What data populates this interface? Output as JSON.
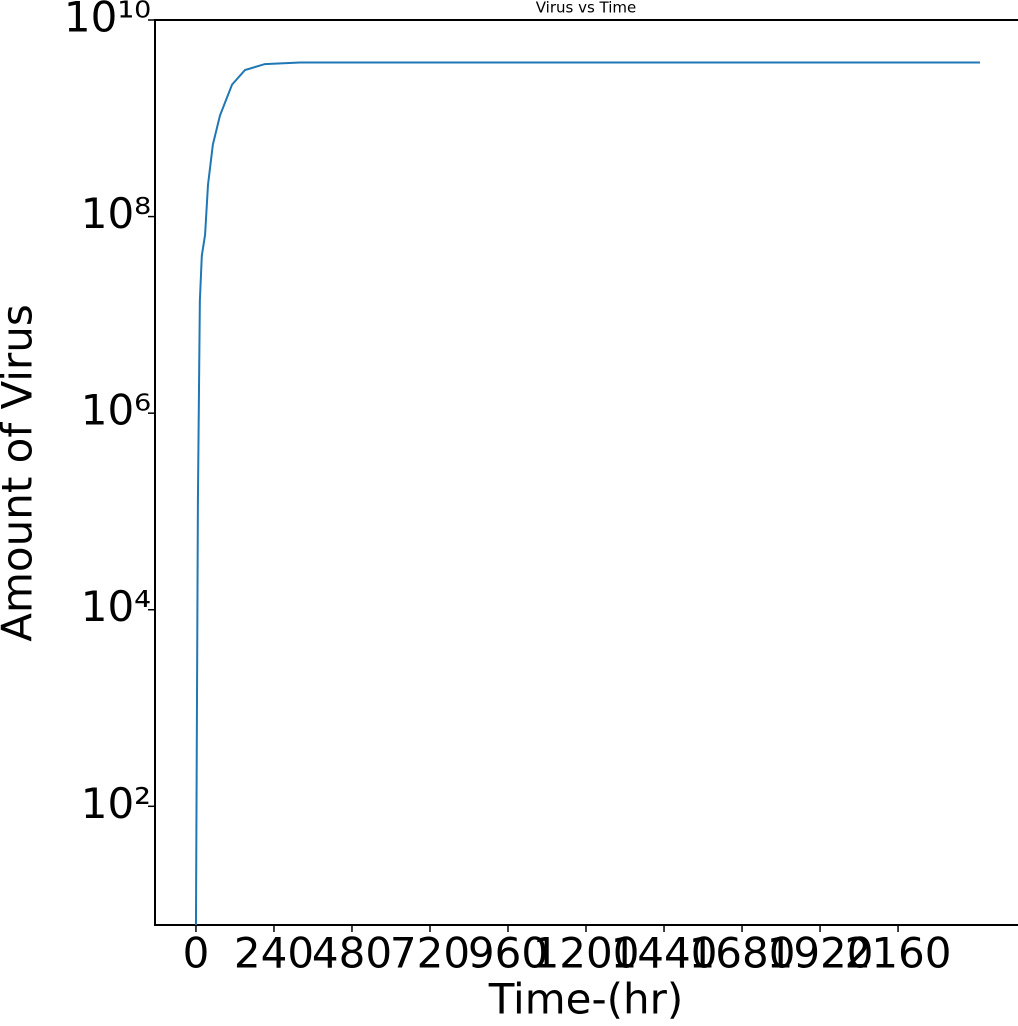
{
  "chart_data": {
    "type": "line",
    "title": "Virus vs Time",
    "x_label": "Time-(hr)",
    "y_label": "Amount of Virus",
    "x": [
      0,
      6,
      12,
      18,
      28,
      37,
      52,
      74,
      111,
      151,
      212,
      320,
      600,
      1200,
      1800,
      2412
    ],
    "values": [
      6.2,
      130000,
      14000000,
      40000000,
      65000000,
      210000000,
      540000000,
      1070000000,
      2200000000,
      3100000000,
      3560000000,
      3700000000,
      3700000000,
      3700000000,
      3700000000,
      3700000000
    ],
    "color": "#1f77b4",
    "xlim": [
      -126,
      2529
    ],
    "xticks": [
      0,
      240,
      480,
      720,
      960,
      1200,
      1440,
      1680,
      1920,
      2160
    ],
    "ylim": [
      6.2,
      10000000000
    ],
    "log_y": true,
    "yticks": [
      {
        "value": 100,
        "label": "10²"
      },
      {
        "value": 10000,
        "label": "10⁴"
      },
      {
        "value": 1000000,
        "label": "10⁶"
      },
      {
        "value": 100000000,
        "label": "10⁸"
      },
      {
        "value": 10000000000,
        "label": "10¹⁰"
      }
    ],
    "grid": false
  }
}
